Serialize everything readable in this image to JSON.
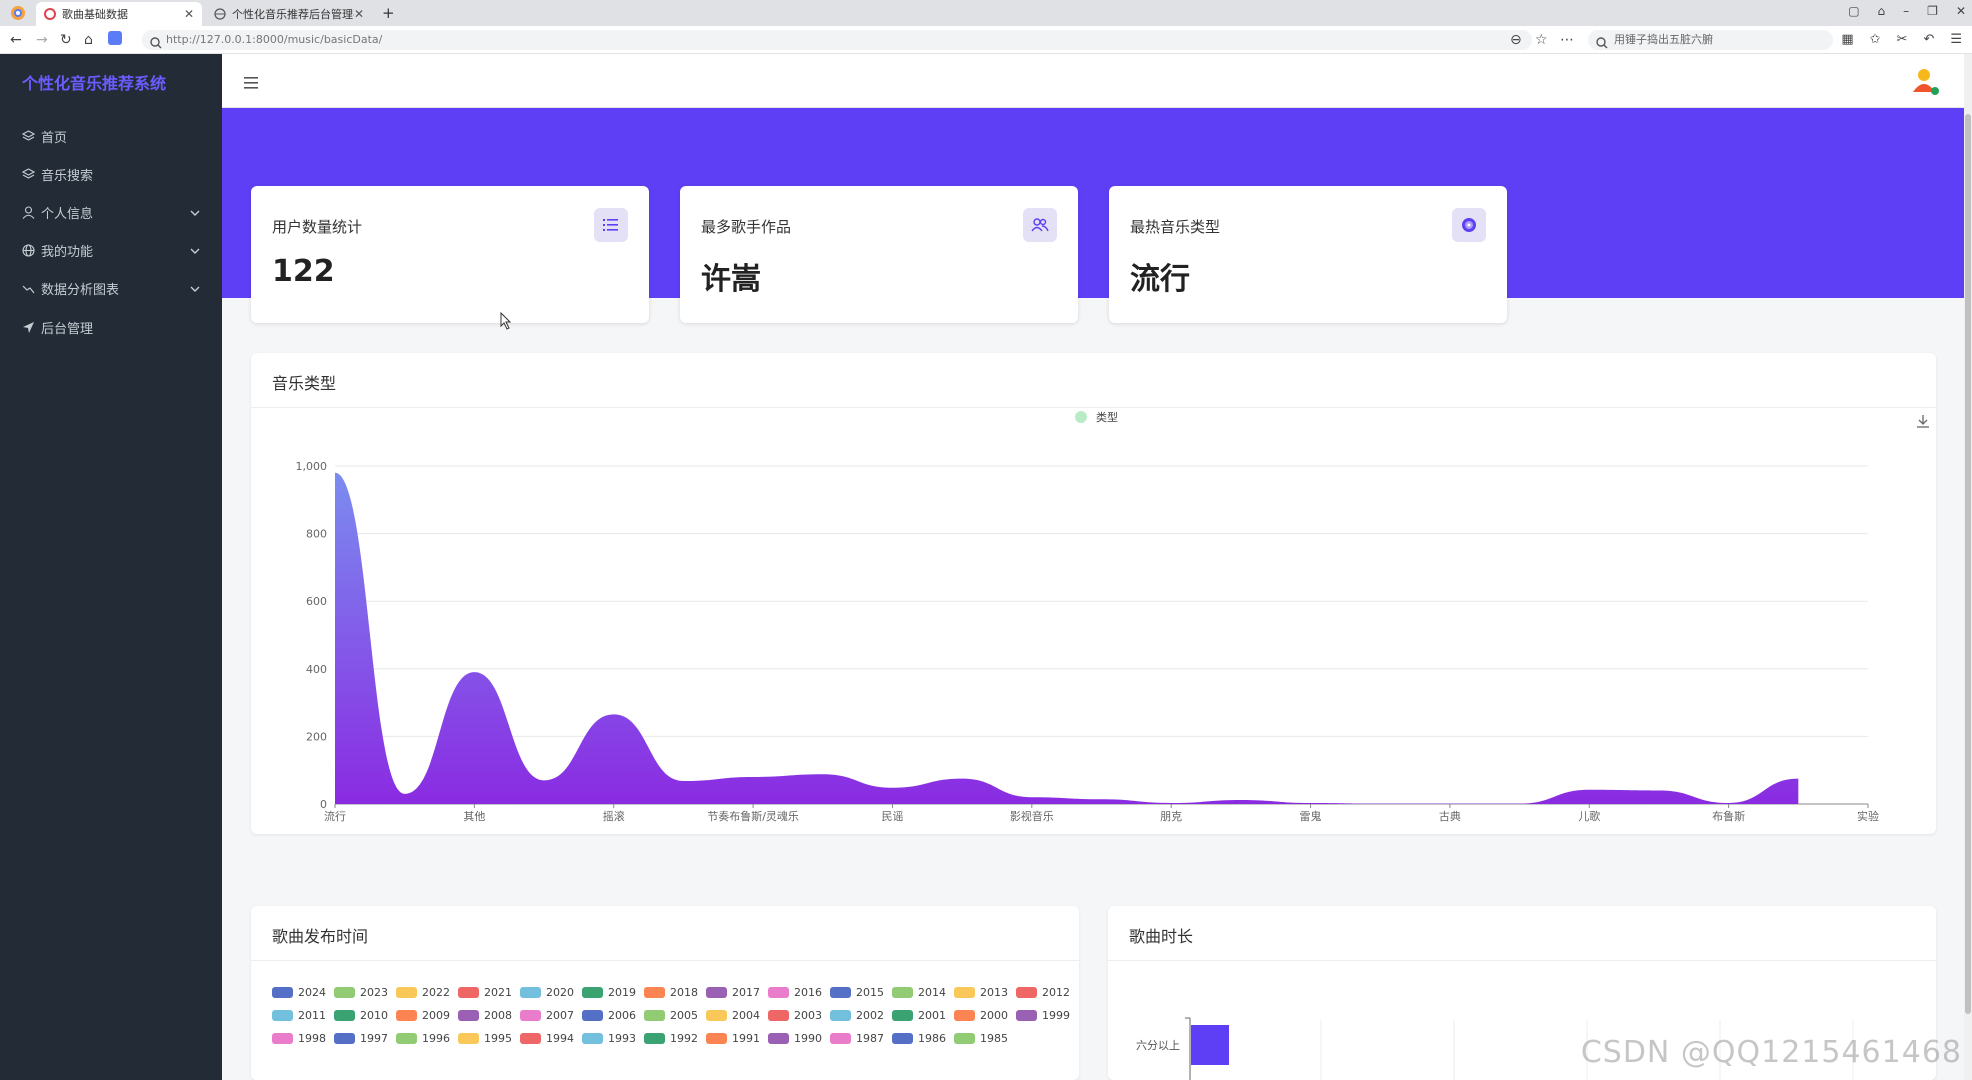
{
  "browser": {
    "tabs": [
      {
        "title": "歌曲基础数据",
        "active": true
      },
      {
        "title": "个性化音乐推荐后台管理-登录",
        "active": false
      }
    ],
    "url": "http://127.0.0.1:8000/music/basicData/",
    "search_placeholder": "用锤子捣出五脏六腑"
  },
  "sidebar": {
    "brand": "个性化音乐推荐系统",
    "items": [
      {
        "label": "首页",
        "icon": "layers-icon",
        "has_submenu": false
      },
      {
        "label": "音乐搜索",
        "icon": "layers-icon",
        "has_submenu": false
      },
      {
        "label": "个人信息",
        "icon": "user-icon",
        "has_submenu": true
      },
      {
        "label": "我的功能",
        "icon": "globe-icon",
        "has_submenu": true
      },
      {
        "label": "数据分析图表",
        "icon": "trend-icon",
        "has_submenu": true
      },
      {
        "label": "后台管理",
        "icon": "send-icon",
        "has_submenu": false
      }
    ]
  },
  "stats": [
    {
      "label": "用户数量统计",
      "value": "122",
      "icon": "list-icon"
    },
    {
      "label": "最多歌手作品",
      "value": "许嵩",
      "icon": "users-icon"
    },
    {
      "label": "最热音乐类型",
      "value": "流行",
      "icon": "disc-icon"
    }
  ],
  "colors": {
    "accent": "#5f3ff5",
    "sidebar_bg": "#232c36",
    "area_top": "#7b8cf0",
    "area_bottom": "#8a2be2"
  },
  "music_type_panel": {
    "title": "音乐类型"
  },
  "chart_data": {
    "type": "area",
    "legend": [
      "类型"
    ],
    "series": [
      {
        "name": "类型",
        "values": [
          980,
          30,
          390,
          70,
          265,
          68,
          80,
          88,
          48,
          75,
          20,
          14,
          3,
          12,
          3,
          1,
          1,
          1,
          42,
          40,
          3,
          75
        ]
      }
    ],
    "tick_labels": [
      "流行",
      "其他",
      "摇滚",
      "节奏布鲁斯/灵魂乐",
      "民谣",
      "影视音乐",
      "朋克",
      "雷鬼",
      "古典",
      "儿歌",
      "布鲁斯",
      "实验"
    ],
    "ylim": [
      0,
      1000
    ],
    "yticks": [
      "0",
      "200",
      "400",
      "600",
      "800",
      "1,000"
    ],
    "grid": true,
    "legend_position": "top-center"
  },
  "release_panel": {
    "title": "歌曲发布时间",
    "years": [
      {
        "label": "2024",
        "color": "#5470c6"
      },
      {
        "label": "2023",
        "color": "#91cc75"
      },
      {
        "label": "2022",
        "color": "#fac858"
      },
      {
        "label": "2021",
        "color": "#ee6666"
      },
      {
        "label": "2020",
        "color": "#73c0de"
      },
      {
        "label": "2019",
        "color": "#3ba272"
      },
      {
        "label": "2018",
        "color": "#fc8452"
      },
      {
        "label": "2017",
        "color": "#9a60b4"
      },
      {
        "label": "2016",
        "color": "#ea7ccc"
      },
      {
        "label": "2015",
        "color": "#5470c6"
      },
      {
        "label": "2014",
        "color": "#91cc75"
      },
      {
        "label": "2013",
        "color": "#fac858"
      },
      {
        "label": "2012",
        "color": "#ee6666"
      },
      {
        "label": "2011",
        "color": "#73c0de"
      },
      {
        "label": "2010",
        "color": "#3ba272"
      },
      {
        "label": "2009",
        "color": "#fc8452"
      },
      {
        "label": "2008",
        "color": "#9a60b4"
      },
      {
        "label": "2007",
        "color": "#ea7ccc"
      },
      {
        "label": "2006",
        "color": "#5470c6"
      },
      {
        "label": "2005",
        "color": "#91cc75"
      },
      {
        "label": "2004",
        "color": "#fac858"
      },
      {
        "label": "2003",
        "color": "#ee6666"
      },
      {
        "label": "2002",
        "color": "#73c0de"
      },
      {
        "label": "2001",
        "color": "#3ba272"
      },
      {
        "label": "2000",
        "color": "#fc8452"
      },
      {
        "label": "1999",
        "color": "#9a60b4"
      },
      {
        "label": "1998",
        "color": "#ea7ccc"
      },
      {
        "label": "1997",
        "color": "#5470c6"
      },
      {
        "label": "1996",
        "color": "#91cc75"
      },
      {
        "label": "1995",
        "color": "#fac858"
      },
      {
        "label": "1994",
        "color": "#ee6666"
      },
      {
        "label": "1993",
        "color": "#73c0de"
      },
      {
        "label": "1992",
        "color": "#3ba272"
      },
      {
        "label": "1991",
        "color": "#fc8452"
      },
      {
        "label": "1990",
        "color": "#9a60b4"
      },
      {
        "label": "1987",
        "color": "#ea7ccc"
      },
      {
        "label": "1986",
        "color": "#5470c6"
      },
      {
        "label": "1985",
        "color": "#91cc75"
      }
    ]
  },
  "duration_panel": {
    "title": "歌曲时长",
    "first_category": "六分以上"
  },
  "watermark": "CSDN @QQ1215461468"
}
